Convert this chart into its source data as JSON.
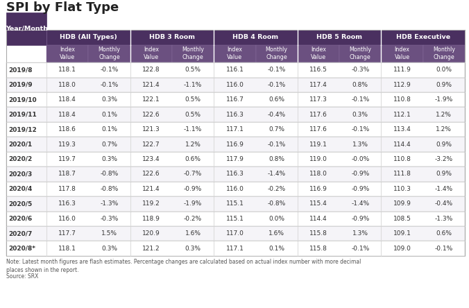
{
  "title": "SPI by Flat Type",
  "note": "Note: Latest month figures are flash estimates. Percentage changes are calculated based on actual index number with more decimal\nplaces shown in the report.",
  "source": "Source: SRX",
  "col_groups": [
    {
      "label": "Year/Month",
      "span": 1
    },
    {
      "label": "HDB (All Types)",
      "span": 2
    },
    {
      "label": "HDB 3 Room",
      "span": 2
    },
    {
      "label": "HDB 4 Room",
      "span": 2
    },
    {
      "label": "HDB 5 Room",
      "span": 2
    },
    {
      "label": "HDB Executive",
      "span": 2
    }
  ],
  "sub_headers": [
    "Index\nValue",
    "Monthly\nChange"
  ],
  "rows": [
    [
      "2019/8",
      "118.1",
      "-0.1%",
      "122.8",
      "0.5%",
      "116.1",
      "-0.1%",
      "116.5",
      "-0.3%",
      "111.9",
      "0.0%"
    ],
    [
      "2019/9",
      "118.0",
      "-0.1%",
      "121.4",
      "-1.1%",
      "116.0",
      "-0.1%",
      "117.4",
      "0.8%",
      "112.9",
      "0.9%"
    ],
    [
      "2019/10",
      "118.4",
      "0.3%",
      "122.1",
      "0.5%",
      "116.7",
      "0.6%",
      "117.3",
      "-0.1%",
      "110.8",
      "-1.9%"
    ],
    [
      "2019/11",
      "118.4",
      "0.1%",
      "122.6",
      "0.5%",
      "116.3",
      "-0.4%",
      "117.6",
      "0.3%",
      "112.1",
      "1.2%"
    ],
    [
      "2019/12",
      "118.6",
      "0.1%",
      "121.3",
      "-1.1%",
      "117.1",
      "0.7%",
      "117.6",
      "-0.1%",
      "113.4",
      "1.2%"
    ],
    [
      "2020/1",
      "119.3",
      "0.7%",
      "122.7",
      "1.2%",
      "116.9",
      "-0.1%",
      "119.1",
      "1.3%",
      "114.4",
      "0.9%"
    ],
    [
      "2020/2",
      "119.7",
      "0.3%",
      "123.4",
      "0.6%",
      "117.9",
      "0.8%",
      "119.0",
      "-0.0%",
      "110.8",
      "-3.2%"
    ],
    [
      "2020/3",
      "118.7",
      "-0.8%",
      "122.6",
      "-0.7%",
      "116.3",
      "-1.4%",
      "118.0",
      "-0.9%",
      "111.8",
      "0.9%"
    ],
    [
      "2020/4",
      "117.8",
      "-0.8%",
      "121.4",
      "-0.9%",
      "116.0",
      "-0.2%",
      "116.9",
      "-0.9%",
      "110.3",
      "-1.4%"
    ],
    [
      "2020/5",
      "116.3",
      "-1.3%",
      "119.2",
      "-1.9%",
      "115.1",
      "-0.8%",
      "115.4",
      "-1.4%",
      "109.9",
      "-0.4%"
    ],
    [
      "2020/6",
      "116.0",
      "-0.3%",
      "118.9",
      "-0.2%",
      "115.1",
      "0.0%",
      "114.4",
      "-0.9%",
      "108.5",
      "-1.3%"
    ],
    [
      "2020/7",
      "117.7",
      "1.5%",
      "120.9",
      "1.6%",
      "117.0",
      "1.6%",
      "115.8",
      "1.3%",
      "109.1",
      "0.6%"
    ],
    [
      "2020/8*",
      "118.1",
      "0.3%",
      "121.2",
      "0.3%",
      "117.1",
      "0.1%",
      "115.8",
      "-0.1%",
      "109.0",
      "-0.1%"
    ]
  ],
  "header_bg": "#4a3060",
  "header_text": "#ffffff",
  "subheader_bg": "#6b5080",
  "subheader_text": "#ffffff",
  "row_odd_bg": "#ffffff",
  "row_even_bg": "#f5f4f8",
  "row_text": "#333333",
  "border_color": "#cccccc",
  "title_color": "#222222",
  "note_color": "#555555"
}
